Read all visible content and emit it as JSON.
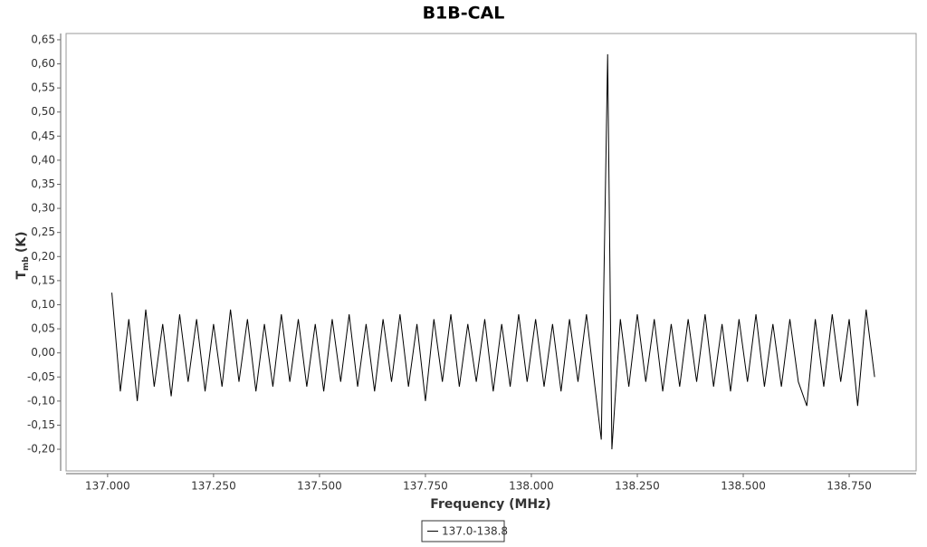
{
  "chart_data": {
    "type": "line",
    "title": "B1B-CAL",
    "x_label": "Frequency (MHz)",
    "y_label": {
      "main": "T",
      "sub": "mb",
      "unit": "(K)"
    },
    "xlim": [
      136.902,
      138.908
    ],
    "ylim": [
      -0.245,
      0.663
    ],
    "xticks": [
      {
        "value": 137,
        "label": "137.000"
      },
      {
        "value": 137.25,
        "label": "137.250"
      },
      {
        "value": 137.5,
        "label": "137.500"
      },
      {
        "value": 137.75,
        "label": "137.750"
      },
      {
        "value": 138,
        "label": "138.000"
      },
      {
        "value": 138.25,
        "label": "138.250"
      },
      {
        "value": 138.5,
        "label": "138.500"
      },
      {
        "value": 138.75,
        "label": "138.750"
      }
    ],
    "yticks": [
      {
        "value": 0.65,
        "label": "0,65"
      },
      {
        "value": 0.6,
        "label": "0,60"
      },
      {
        "value": 0.55,
        "label": "0,55"
      },
      {
        "value": 0.5,
        "label": "0,50"
      },
      {
        "value": 0.45,
        "label": "0,45"
      },
      {
        "value": 0.4,
        "label": "0,40"
      },
      {
        "value": 0.35,
        "label": "0,35"
      },
      {
        "value": 0.3,
        "label": "0,30"
      },
      {
        "value": 0.25,
        "label": "0,25"
      },
      {
        "value": 0.2,
        "label": "0,20"
      },
      {
        "value": 0.15,
        "label": "0,15"
      },
      {
        "value": 0.1,
        "label": "0,10"
      },
      {
        "value": 0.05,
        "label": "0,05"
      },
      {
        "value": 0,
        "label": "0,00"
      },
      {
        "value": -0.05,
        "label": "-0,05"
      },
      {
        "value": -0.1,
        "label": "-0,10"
      },
      {
        "value": -0.15,
        "label": "-0,15"
      },
      {
        "value": -0.2,
        "label": "-0,20"
      }
    ],
    "legend": "bottom",
    "series": [
      {
        "name": "137.0-138.8",
        "color": "#000000",
        "x": [
          137.01,
          137.03,
          137.05,
          137.07,
          137.09,
          137.11,
          137.13,
          137.15,
          137.17,
          137.19,
          137.21,
          137.23,
          137.25,
          137.27,
          137.29,
          137.31,
          137.33,
          137.35,
          137.37,
          137.39,
          137.41,
          137.43,
          137.45,
          137.47,
          137.49,
          137.51,
          137.53,
          137.55,
          137.57,
          137.59,
          137.61,
          137.63,
          137.65,
          137.67,
          137.69,
          137.71,
          137.73,
          137.75,
          137.77,
          137.79,
          137.81,
          137.83,
          137.85,
          137.87,
          137.89,
          137.91,
          137.93,
          137.95,
          137.97,
          137.99,
          138.01,
          138.03,
          138.05,
          138.07,
          138.09,
          138.11,
          138.13,
          138.15,
          138.165,
          138.17,
          138.18,
          138.19,
          138.21,
          138.23,
          138.25,
          138.27,
          138.29,
          138.31,
          138.33,
          138.35,
          138.37,
          138.39,
          138.41,
          138.43,
          138.45,
          138.47,
          138.49,
          138.51,
          138.53,
          138.55,
          138.57,
          138.59,
          138.61,
          138.63,
          138.65,
          138.67,
          138.69,
          138.71,
          138.73,
          138.75,
          138.77,
          138.79,
          138.81
        ],
        "values": [
          0.125,
          -0.08,
          0.07,
          -0.1,
          0.09,
          -0.07,
          0.06,
          -0.09,
          0.08,
          -0.06,
          0.07,
          -0.08,
          0.06,
          -0.07,
          0.09,
          -0.06,
          0.07,
          -0.08,
          0.06,
          -0.07,
          0.08,
          -0.06,
          0.07,
          -0.07,
          0.06,
          -0.08,
          0.07,
          -0.06,
          0.08,
          -0.07,
          0.06,
          -0.08,
          0.07,
          -0.06,
          0.08,
          -0.07,
          0.06,
          -0.1,
          0.07,
          -0.06,
          0.08,
          -0.07,
          0.06,
          -0.06,
          0.07,
          -0.08,
          0.06,
          -0.07,
          0.08,
          -0.06,
          0.07,
          -0.07,
          0.06,
          -0.08,
          0.07,
          -0.06,
          0.08,
          -0.07,
          -0.18,
          0.09,
          0.62,
          -0.2,
          0.07,
          -0.07,
          0.08,
          -0.06,
          0.07,
          -0.08,
          0.06,
          -0.07,
          0.07,
          -0.06,
          0.08,
          -0.07,
          0.06,
          -0.08,
          0.07,
          -0.06,
          0.08,
          -0.07,
          0.06,
          -0.07,
          0.07,
          -0.06,
          -0.11,
          0.07,
          -0.07,
          0.08,
          -0.06,
          0.07,
          -0.11,
          0.09,
          -0.05
        ]
      }
    ]
  }
}
